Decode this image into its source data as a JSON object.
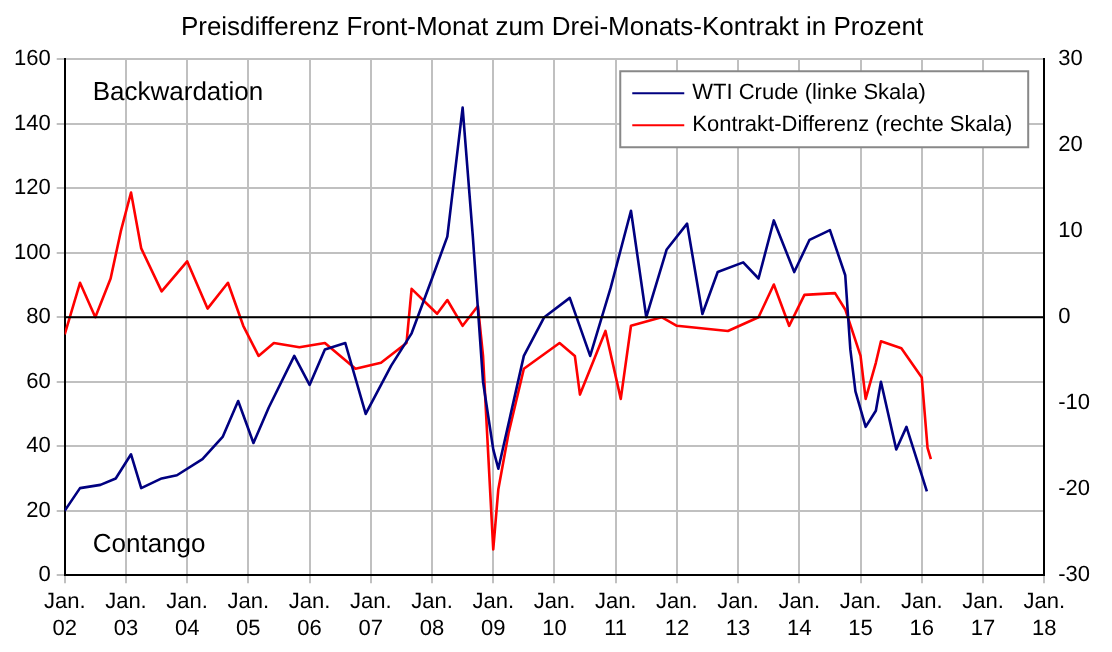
{
  "chart_data": {
    "type": "line",
    "title": "Preisdifferenz Front-Monat zum Drei-Monats-Kontrakt in Prozent",
    "xlim": [
      "2002-01",
      "2018-01"
    ],
    "xticks": [
      {
        "value": "2002-01",
        "label": "Jan. 02"
      },
      {
        "value": "2003-01",
        "label": "Jan. 03"
      },
      {
        "value": "2004-01",
        "label": "Jan. 04"
      },
      {
        "value": "2005-01",
        "label": "Jan. 05"
      },
      {
        "value": "2006-01",
        "label": "Jan. 06"
      },
      {
        "value": "2007-01",
        "label": "Jan. 07"
      },
      {
        "value": "2008-01",
        "label": "Jan. 08"
      },
      {
        "value": "2009-01",
        "label": "Jan. 09"
      },
      {
        "value": "2010-01",
        "label": "Jan. 10"
      },
      {
        "value": "2011-01",
        "label": "Jan. 11"
      },
      {
        "value": "2012-01",
        "label": "Jan. 12"
      },
      {
        "value": "2013-01",
        "label": "Jan. 13"
      },
      {
        "value": "2014-01",
        "label": "Jan. 14"
      },
      {
        "value": "2015-01",
        "label": "Jan. 15"
      },
      {
        "value": "2016-01",
        "label": "Jan. 16"
      },
      {
        "value": "2017-01",
        "label": "Jan. 17"
      },
      {
        "value": "2018-01",
        "label": "Jan. 18"
      }
    ],
    "ylim": [
      0,
      160
    ],
    "yticks": [
      0,
      20,
      40,
      60,
      80,
      100,
      120,
      140,
      160
    ],
    "y2lim": [
      -30,
      30
    ],
    "y2ticks": [
      -30,
      -20,
      -10,
      0,
      10,
      20,
      30
    ],
    "grid": true,
    "legend": "top right",
    "ref_lines": [
      {
        "axis": "y2",
        "value": 0,
        "color": "#000000"
      }
    ],
    "annotations": [
      "Backwardation",
      "Contango"
    ],
    "series": [
      {
        "name": "WTI Crude (linke Skala)",
        "color": "#000080",
        "x": [
          "2002-01",
          "2002-04",
          "2002-08",
          "2002-11",
          "2003-02",
          "2003-04",
          "2003-08",
          "2003-11",
          "2004-04",
          "2004-08",
          "2004-11",
          "2005-02",
          "2005-05",
          "2005-10",
          "2006-01",
          "2006-04",
          "2006-08",
          "2006-12",
          "2007-05",
          "2007-09",
          "2008-01",
          "2008-04",
          "2008-07",
          "2008-09",
          "2008-11",
          "2009-01",
          "2009-02",
          "2009-07",
          "2009-11",
          "2010-04",
          "2010-08",
          "2010-12",
          "2011-04",
          "2011-07",
          "2011-11",
          "2012-03",
          "2012-06",
          "2012-09",
          "2013-02",
          "2013-05",
          "2013-08",
          "2013-12",
          "2014-03",
          "2014-07",
          "2014-10",
          "2014-11",
          "2014-12",
          "2015-02",
          "2015-04",
          "2015-05",
          "2015-08",
          "2015-10",
          "2016-01",
          "2016-02"
        ],
        "values": [
          20,
          27,
          28,
          30,
          37.5,
          27,
          30,
          31,
          36,
          43,
          54,
          41,
          52,
          68,
          59,
          70,
          72,
          50,
          65,
          75,
          92,
          105,
          145,
          105,
          60,
          39,
          33,
          68,
          80,
          86,
          68,
          89,
          113,
          80,
          101,
          109,
          81,
          94,
          97,
          92,
          110,
          94,
          104,
          107,
          93,
          70,
          57,
          46,
          51,
          60,
          39,
          46,
          31,
          26
        ]
      },
      {
        "name": "Kontrakt-Differenz (rechte Skala)",
        "color": "#ff0000",
        "axis": "y2",
        "x": [
          "2002-01",
          "2002-04",
          "2002-07",
          "2002-10",
          "2002-12",
          "2003-02",
          "2003-04",
          "2003-08",
          "2004-01",
          "2004-05",
          "2004-09",
          "2004-12",
          "2005-03",
          "2005-06",
          "2005-11",
          "2006-04",
          "2006-10",
          "2007-03",
          "2007-08",
          "2007-09",
          "2008-02",
          "2008-04",
          "2008-07",
          "2008-10",
          "2008-11",
          "2009-01",
          "2009-02",
          "2009-04",
          "2009-07",
          "2010-02",
          "2010-05",
          "2010-06",
          "2010-11",
          "2011-02",
          "2011-04",
          "2011-10",
          "2012-01",
          "2012-11",
          "2013-05",
          "2013-08",
          "2013-11",
          "2014-02",
          "2014-08",
          "2014-10",
          "2015-01",
          "2015-02",
          "2015-04",
          "2015-05",
          "2015-09",
          "2016-01",
          "2016-02-05",
          "2016-02-25"
        ],
        "values": [
          -2,
          4,
          0,
          4.5,
          10,
          14.5,
          8,
          3,
          6.5,
          1,
          4,
          -1,
          -4.5,
          -3,
          -3.5,
          -3,
          -6,
          -5.3,
          -3,
          3.3,
          0.4,
          2,
          -1,
          1.3,
          -4.5,
          -27,
          -20,
          -13.5,
          -6,
          -3,
          -4.5,
          -9,
          -1.6,
          -9.5,
          -1,
          0,
          -1,
          -1.6,
          0,
          3.8,
          -1,
          2.6,
          2.8,
          0.9,
          -4.5,
          -9.5,
          -5.3,
          -2.8,
          -3.6,
          -7,
          -15.2,
          -16.5
        ]
      }
    ]
  }
}
